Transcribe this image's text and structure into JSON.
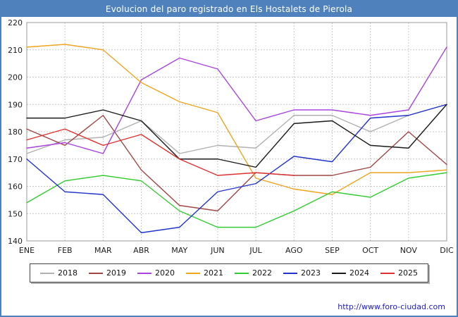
{
  "title": "Evolucion del paro registrado en Els Hostalets de Pierola",
  "footer": {
    "url": "http://www.foro-ciudad.com"
  },
  "colors": {
    "header_bg": "#4f81bd",
    "frame_border": "#4f81bd",
    "header_text": "#ffffff",
    "grid": "#c8c8c8",
    "plot_border": "#999999",
    "link": "#1a1acc"
  },
  "chart_data": {
    "type": "line",
    "title": "Evolucion del paro registrado en Els Hostalets de Pierola",
    "xlabel": "",
    "ylabel": "",
    "ylim": [
      140,
      220
    ],
    "yticks": [
      140,
      150,
      160,
      170,
      180,
      190,
      200,
      210,
      220
    ],
    "grid": true,
    "legend_position": "bottom",
    "categories": [
      "ENE",
      "FEB",
      "MAR",
      "ABR",
      "MAY",
      "JUN",
      "JUL",
      "AGO",
      "SEP",
      "OCT",
      "NOV",
      "DIC"
    ],
    "series": [
      {
        "name": "2018",
        "color": "#b0b0b0",
        "values": [
          172,
          177,
          178,
          184,
          172,
          175,
          174,
          186,
          186,
          180,
          186,
          190
        ]
      },
      {
        "name": "2019",
        "color": "#a04545",
        "values": [
          181,
          175,
          186,
          166,
          153,
          151,
          165,
          164,
          164,
          167,
          180,
          168
        ]
      },
      {
        "name": "2020",
        "color": "#aa44dd",
        "values": [
          174,
          176,
          172,
          199,
          207,
          203,
          184,
          188,
          188,
          186,
          188,
          211
        ]
      },
      {
        "name": "2021",
        "color": "#efa520",
        "values": [
          211,
          212,
          210,
          198,
          191,
          187,
          163,
          159,
          157,
          165,
          165,
          166
        ]
      },
      {
        "name": "2022",
        "color": "#33cc33",
        "values": [
          154,
          162,
          164,
          162,
          151,
          145,
          145,
          151,
          158,
          156,
          163,
          165
        ]
      },
      {
        "name": "2023",
        "color": "#2233cc",
        "values": [
          170,
          158,
          157,
          143,
          145,
          158,
          161,
          171,
          169,
          185,
          186,
          190
        ]
      },
      {
        "name": "2024",
        "color": "#1a1a1a",
        "values": [
          185,
          185,
          188,
          184,
          170,
          170,
          167,
          183,
          184,
          175,
          174,
          190
        ]
      },
      {
        "name": "2025",
        "color": "#e03030",
        "values": [
          177,
          181,
          175,
          179,
          170,
          164,
          165,
          164,
          null,
          null,
          null,
          null
        ]
      }
    ]
  }
}
